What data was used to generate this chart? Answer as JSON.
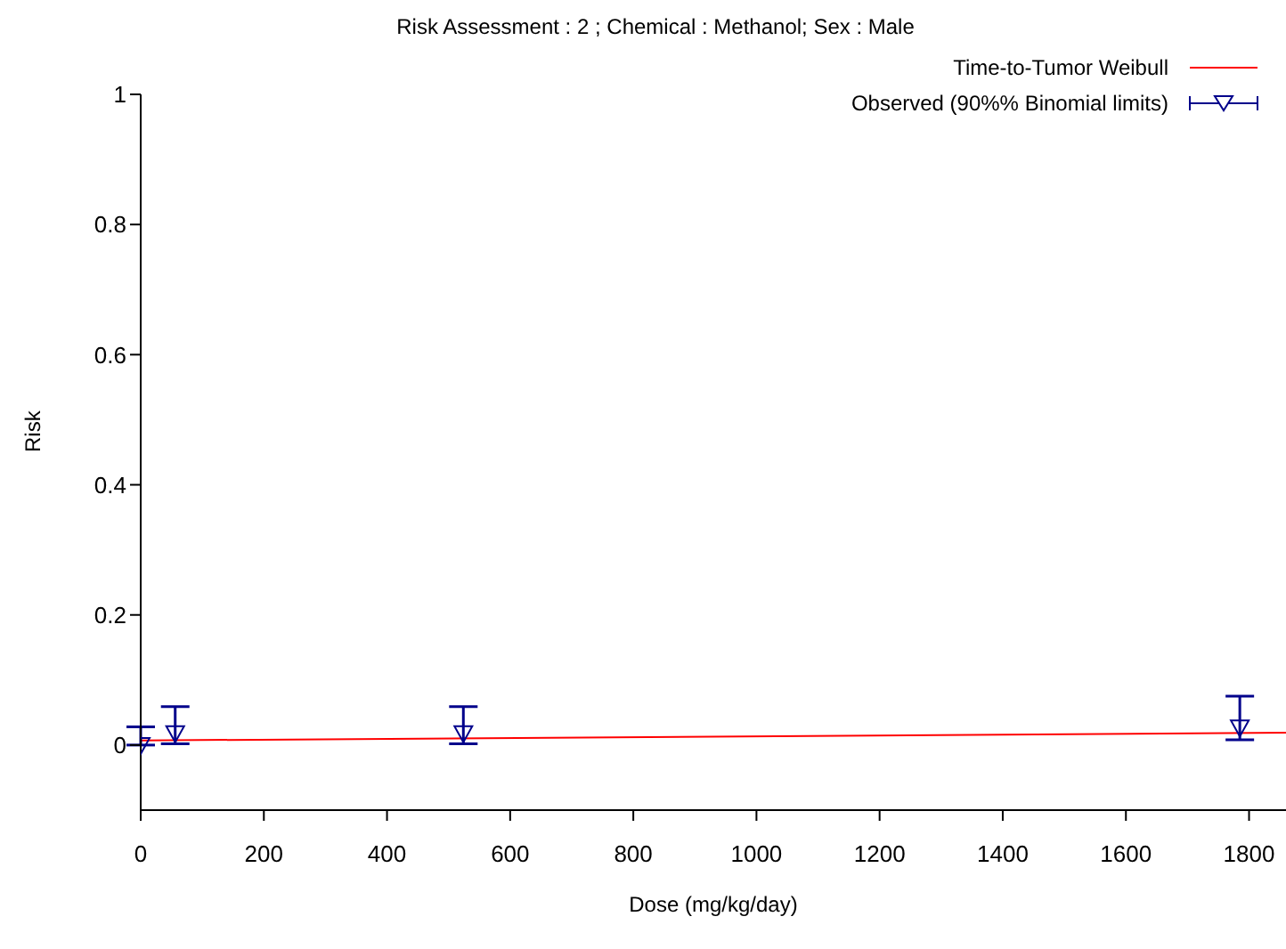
{
  "chart_data": {
    "type": "line",
    "title": "Risk Assessment : 2 ; Chemical : Methanol; Sex : Male",
    "xlabel": "Dose (mg/kg/day)",
    "ylabel": "Risk",
    "xlim": [
      0,
      1860
    ],
    "xticks": [
      0,
      200,
      400,
      600,
      800,
      1000,
      1200,
      1400,
      1600,
      1800
    ],
    "ylim": [
      -0.1,
      1
    ],
    "yticks": [
      0,
      0.2,
      0.4,
      0.6,
      0.8,
      1
    ],
    "legend": "top right",
    "grid": false,
    "series": [
      {
        "name": "Time-to-Tumor Weibull",
        "color": "#ff0000",
        "marker": "none",
        "x": [
          0,
          1860
        ],
        "values": [
          0.007,
          0.019
        ]
      },
      {
        "name": "Observed (90%% Binomial limits)",
        "type": "scatter",
        "color": "#00008b",
        "marker": "triangle",
        "x": [
          0,
          56,
          524,
          1785
        ],
        "values": [
          0,
          0.018,
          0.018,
          0.027
        ],
        "errors": [
          [
            0,
            0.028
          ],
          [
            0.002,
            0.059
          ],
          [
            0.002,
            0.059
          ],
          [
            0.008,
            0.075
          ]
        ]
      }
    ]
  }
}
